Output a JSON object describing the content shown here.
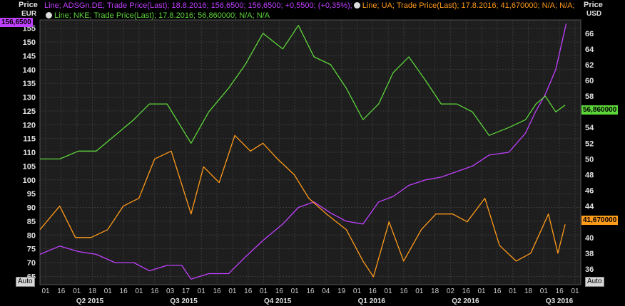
{
  "header": {
    "left_label": "Price",
    "left_unit": "EUR",
    "right_label": "Price",
    "right_unit": "USD",
    "auto_left": "Auto",
    "auto_right": "Auto"
  },
  "legend": {
    "line1_text": "Line; ADSGn.DE; Trade Price(Last); 18.8.2016; 156,6500; 156,6500; +0,5500; (+0,35%);",
    "line1_ua": "Line; UA; Trade Price(Last); 17.8.2016; 41,670000; N/A; N/A;",
    "line2_text": "Line; NKE; Trade Price(Last); 17.8.2016; 56,860000; N/A; N/A",
    "color_ads": "#c040ff",
    "color_ua": "#ff9a1a",
    "color_nke": "#5dd63a",
    "color_change": "#00d0d0"
  },
  "tags": {
    "ads_last": "156,6500",
    "nke_last": "56,860000",
    "ua_last": "41,670000"
  },
  "chart_data": {
    "type": "line",
    "x_range": [
      "2015-04-01",
      "2016-09-01"
    ],
    "left_axis": {
      "label": "Price",
      "unit": "EUR",
      "ylim": [
        62,
        158
      ],
      "ticks": [
        65,
        70,
        75,
        80,
        85,
        90,
        95,
        100,
        105,
        110,
        115,
        120,
        125,
        130,
        135,
        140,
        145,
        150,
        155
      ]
    },
    "right_axis": {
      "label": "Price",
      "unit": "USD",
      "ylim": [
        34,
        67.7
      ],
      "ticks": [
        36,
        38,
        40,
        42,
        44,
        46,
        48,
        50,
        52,
        54,
        56,
        58,
        60,
        62,
        64,
        66
      ]
    },
    "x_tick_labels": [
      "01",
      "16",
      "01",
      "18",
      "01",
      "16",
      "01",
      "16",
      "03",
      "17",
      "01",
      "16",
      "01",
      "16",
      "01",
      "16",
      "01",
      "16",
      "04",
      "19",
      "01",
      "16",
      "01",
      "16",
      "01",
      "18",
      "02",
      "16",
      "01",
      "16",
      "01",
      "18",
      "01",
      "16",
      "01"
    ],
    "quarters": [
      "Q2 2015",
      "Q3 2015",
      "Q4 2015",
      "Q1 2016",
      "Q2 2016",
      "Q3 2016"
    ],
    "grid": true,
    "series": [
      {
        "name": "ADSGn.DE",
        "axis": "left",
        "color": "#c040ff",
        "points": [
          [
            "2015-04-01",
            73
          ],
          [
            "2015-04-20",
            76
          ],
          [
            "2015-05-08",
            74
          ],
          [
            "2015-05-25",
            73
          ],
          [
            "2015-06-12",
            70
          ],
          [
            "2015-06-30",
            70
          ],
          [
            "2015-07-15",
            67
          ],
          [
            "2015-08-01",
            69
          ],
          [
            "2015-08-15",
            69
          ],
          [
            "2015-08-24",
            64
          ],
          [
            "2015-09-10",
            66
          ],
          [
            "2015-09-29",
            66
          ],
          [
            "2015-10-15",
            72
          ],
          [
            "2015-11-01",
            78
          ],
          [
            "2015-11-20",
            84
          ],
          [
            "2015-12-05",
            90
          ],
          [
            "2015-12-20",
            92
          ],
          [
            "2016-01-05",
            88
          ],
          [
            "2016-01-20",
            85
          ],
          [
            "2016-02-05",
            84
          ],
          [
            "2016-02-20",
            92
          ],
          [
            "2016-03-05",
            94
          ],
          [
            "2016-03-20",
            98
          ],
          [
            "2016-04-05",
            100
          ],
          [
            "2016-04-20",
            101
          ],
          [
            "2016-05-05",
            103
          ],
          [
            "2016-05-20",
            105
          ],
          [
            "2016-06-05",
            109
          ],
          [
            "2016-06-24",
            110
          ],
          [
            "2016-07-10",
            117
          ],
          [
            "2016-07-20",
            125
          ],
          [
            "2016-07-29",
            131
          ],
          [
            "2016-08-08",
            140
          ],
          [
            "2016-08-18",
            156.65
          ]
        ]
      },
      {
        "name": "UA",
        "axis": "right",
        "color": "#ff9a1a",
        "points": [
          [
            "2015-04-01",
            41
          ],
          [
            "2015-04-20",
            44
          ],
          [
            "2015-05-05",
            40
          ],
          [
            "2015-05-20",
            40
          ],
          [
            "2015-06-05",
            41
          ],
          [
            "2015-06-20",
            44
          ],
          [
            "2015-07-05",
            45
          ],
          [
            "2015-07-20",
            50
          ],
          [
            "2015-08-05",
            51
          ],
          [
            "2015-08-24",
            43
          ],
          [
            "2015-09-05",
            49
          ],
          [
            "2015-09-20",
            47
          ],
          [
            "2015-10-05",
            53
          ],
          [
            "2015-10-20",
            51
          ],
          [
            "2015-11-01",
            52
          ],
          [
            "2015-11-15",
            50
          ],
          [
            "2015-12-01",
            48
          ],
          [
            "2015-12-15",
            45
          ],
          [
            "2016-01-01",
            43
          ],
          [
            "2016-01-20",
            41
          ],
          [
            "2016-02-05",
            37
          ],
          [
            "2016-02-15",
            35
          ],
          [
            "2016-03-01",
            42
          ],
          [
            "2016-03-15",
            37
          ],
          [
            "2016-04-01",
            41
          ],
          [
            "2016-04-15",
            43
          ],
          [
            "2016-05-01",
            43
          ],
          [
            "2016-05-15",
            42
          ],
          [
            "2016-06-01",
            45
          ],
          [
            "2016-06-15",
            39
          ],
          [
            "2016-07-01",
            37
          ],
          [
            "2016-07-15",
            38
          ],
          [
            "2016-08-01",
            43
          ],
          [
            "2016-08-10",
            38
          ],
          [
            "2016-08-17",
            41.67
          ]
        ]
      },
      {
        "name": "NKE",
        "axis": "right",
        "color": "#5dd63a",
        "points": [
          [
            "2015-04-01",
            50
          ],
          [
            "2015-04-20",
            50
          ],
          [
            "2015-05-08",
            51
          ],
          [
            "2015-05-25",
            51
          ],
          [
            "2015-06-12",
            53
          ],
          [
            "2015-06-30",
            55
          ],
          [
            "2015-07-15",
            57
          ],
          [
            "2015-08-01",
            57
          ],
          [
            "2015-08-24",
            52
          ],
          [
            "2015-09-10",
            56
          ],
          [
            "2015-09-29",
            59
          ],
          [
            "2015-10-15",
            62
          ],
          [
            "2015-11-01",
            66
          ],
          [
            "2015-11-20",
            64
          ],
          [
            "2015-12-05",
            67
          ],
          [
            "2015-12-20",
            63
          ],
          [
            "2016-01-05",
            62
          ],
          [
            "2016-01-20",
            59
          ],
          [
            "2016-02-05",
            55
          ],
          [
            "2016-02-20",
            57
          ],
          [
            "2016-03-05",
            61
          ],
          [
            "2016-03-20",
            63
          ],
          [
            "2016-04-05",
            60
          ],
          [
            "2016-04-20",
            57
          ],
          [
            "2016-05-05",
            57
          ],
          [
            "2016-05-20",
            56
          ],
          [
            "2016-06-05",
            53
          ],
          [
            "2016-06-24",
            54
          ],
          [
            "2016-07-10",
            55
          ],
          [
            "2016-07-20",
            57
          ],
          [
            "2016-07-29",
            58
          ],
          [
            "2016-08-08",
            56
          ],
          [
            "2016-08-17",
            56.86
          ]
        ]
      }
    ]
  }
}
